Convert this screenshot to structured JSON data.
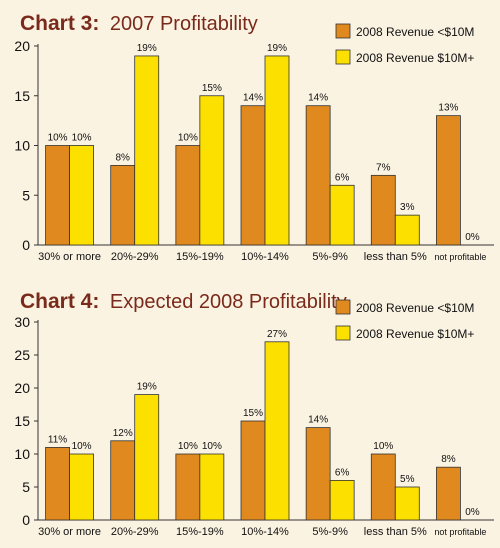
{
  "colors": {
    "background": "#FBF3E2",
    "title": "#7A2A1A",
    "series_under_10m": "#E0891F",
    "series_10m_plus": "#FCE100",
    "bar_stroke": "#333333",
    "axis": "#333333"
  },
  "chart_data": [
    {
      "type": "bar",
      "title_prefix": "Chart 3:",
      "title": "2007 Profitability",
      "categories": [
        "30% or more",
        "20%-29%",
        "15%-19%",
        "10%-14%",
        "5%-9%",
        "less than 5%",
        "not profitable"
      ],
      "series": [
        {
          "name": "2008 Revenue <$10M",
          "values": [
            10,
            8,
            10,
            14,
            14,
            7,
            13
          ]
        },
        {
          "name": "2008 Revenue $10M+",
          "values": [
            10,
            19,
            15,
            19,
            6,
            3,
            0
          ]
        }
      ],
      "data_labels": [
        [
          "10%",
          "8%",
          "10%",
          "14%",
          "14%",
          "7%",
          "13%"
        ],
        [
          "10%",
          "19%",
          "15%",
          "19%",
          "6%",
          "3%",
          "0%"
        ]
      ],
      "ylim": [
        0,
        20
      ],
      "yticks": [
        0,
        5,
        10,
        15,
        20
      ],
      "legend_position": "top-right",
      "grid": false
    },
    {
      "type": "bar",
      "title_prefix": "Chart 4:",
      "title": "Expected 2008 Profitability",
      "categories": [
        "30% or more",
        "20%-29%",
        "15%-19%",
        "10%-14%",
        "5%-9%",
        "less than 5%",
        "not profitable"
      ],
      "series": [
        {
          "name": "2008 Revenue <$10M",
          "values": [
            11,
            12,
            10,
            15,
            14,
            10,
            8
          ]
        },
        {
          "name": "2008 Revenue $10M+",
          "values": [
            10,
            19,
            10,
            27,
            6,
            5,
            0
          ]
        }
      ],
      "data_labels": [
        [
          "11%",
          "12%",
          "10%",
          "15%",
          "14%",
          "10%",
          "8%"
        ],
        [
          "10%",
          "19%",
          "10%",
          "27%",
          "6%",
          "5%",
          "0%"
        ]
      ],
      "ylim": [
        0,
        30
      ],
      "yticks": [
        0,
        5,
        10,
        15,
        20,
        25,
        30
      ],
      "legend_position": "top-right",
      "grid": false
    }
  ]
}
